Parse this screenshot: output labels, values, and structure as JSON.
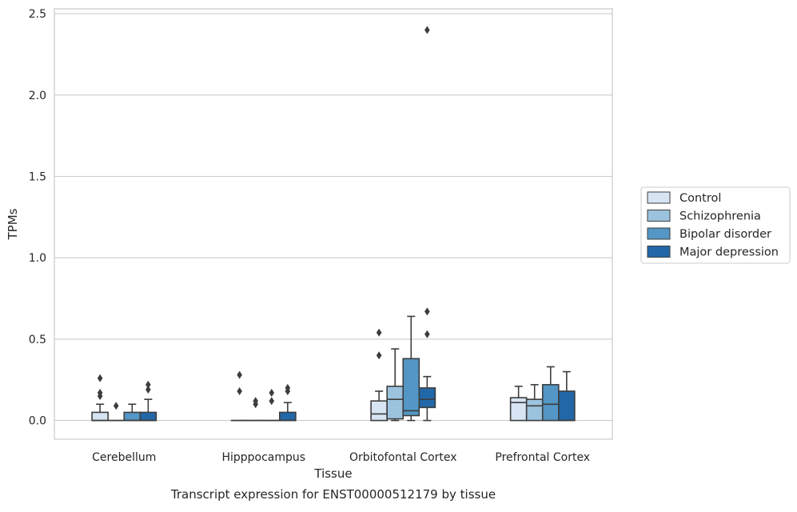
{
  "caption": "Transcript expression for ENST00000512179 by tissue",
  "chart_data": {
    "type": "box",
    "xlabel": "Tissue",
    "ylabel": "TPMs",
    "ylim": [
      -0.115,
      2.53
    ],
    "yticks": [
      "0.0",
      "0.5",
      "1.0",
      "1.5",
      "2.0",
      "2.5"
    ],
    "grid": "horizontal",
    "legend_placement": "right",
    "categories": [
      "Cerebellum",
      "Hipppocampus",
      "Orbitofontal Cortex",
      "Prefrontal Cortex"
    ],
    "series": [
      {
        "name": "Control",
        "color": "#d6e4f3",
        "boxes": [
          {
            "min": 0,
            "q1": 0,
            "median": 0,
            "q3": 0.05,
            "max": 0.1,
            "outliers": [
              0.15,
              0.17,
              0.26
            ]
          },
          {
            "min": 0,
            "q1": 0,
            "median": 0,
            "q3": 0,
            "max": 0,
            "outliers": [
              0.18,
              0.28
            ]
          },
          {
            "min": 0,
            "q1": 0,
            "median": 0.04,
            "q3": 0.12,
            "max": 0.18,
            "outliers": [
              0.4,
              0.54
            ]
          },
          {
            "min": 0,
            "q1": 0,
            "median": 0.11,
            "q3": 0.14,
            "max": 0.21,
            "outliers": []
          }
        ]
      },
      {
        "name": "Schizophrenia",
        "color": "#9cc3de",
        "boxes": [
          {
            "min": 0,
            "q1": 0,
            "median": 0,
            "q3": 0,
            "max": 0,
            "outliers": [
              0.09
            ]
          },
          {
            "min": 0,
            "q1": 0,
            "median": 0,
            "q3": 0,
            "max": 0,
            "outliers": [
              0.1,
              0.12
            ]
          },
          {
            "min": 0,
            "q1": 0.01,
            "median": 0.13,
            "q3": 0.21,
            "max": 0.44,
            "outliers": []
          },
          {
            "min": 0,
            "q1": 0,
            "median": 0.09,
            "q3": 0.13,
            "max": 0.22,
            "outliers": []
          }
        ]
      },
      {
        "name": "Bipolar disorder",
        "color": "#5496c5",
        "boxes": [
          {
            "min": 0,
            "q1": 0,
            "median": 0,
            "q3": 0.05,
            "max": 0.1,
            "outliers": []
          },
          {
            "min": 0,
            "q1": 0,
            "median": 0,
            "q3": 0,
            "max": 0,
            "outliers": [
              0.12,
              0.17
            ]
          },
          {
            "min": 0,
            "q1": 0.03,
            "median": 0.06,
            "q3": 0.38,
            "max": 0.64,
            "outliers": []
          },
          {
            "min": 0,
            "q1": 0,
            "median": 0.1,
            "q3": 0.22,
            "max": 0.33,
            "outliers": []
          }
        ]
      },
      {
        "name": "Major depression",
        "color": "#2268a8",
        "boxes": [
          {
            "min": 0,
            "q1": 0,
            "median": 0,
            "q3": 0.05,
            "max": 0.13,
            "outliers": [
              0.19,
              0.22
            ]
          },
          {
            "min": 0,
            "q1": 0,
            "median": 0,
            "q3": 0.05,
            "max": 0.11,
            "outliers": [
              0.18,
              0.2
            ]
          },
          {
            "min": 0,
            "q1": 0.08,
            "median": 0.13,
            "q3": 0.2,
            "max": 0.27,
            "outliers": [
              0.53,
              0.67,
              2.4
            ]
          },
          {
            "min": 0,
            "q1": 0,
            "median": 0,
            "q3": 0.18,
            "max": 0.3,
            "outliers": []
          }
        ]
      }
    ]
  }
}
